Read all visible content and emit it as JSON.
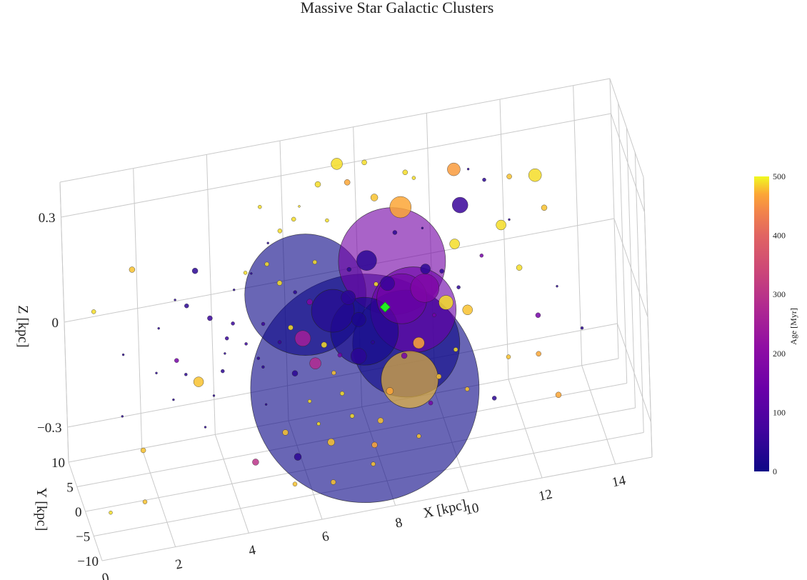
{
  "chart_data": {
    "type": "scatter3d",
    "title": "Massive Star Galactic Clusters",
    "xlabel": "X [kpc]",
    "ylabel": "Y [kpc]",
    "zlabel": "Z [kpc]",
    "xlim": [
      0,
      15
    ],
    "ylim": [
      -10,
      10
    ],
    "zlim": [
      -0.4,
      0.4
    ],
    "x_ticks": [
      "0",
      "2",
      "4",
      "6",
      "8",
      "10",
      "12",
      "14"
    ],
    "y_ticks": [
      "−10",
      "−5",
      "0",
      "5",
      "10"
    ],
    "z_ticks": [
      "−0.3",
      "0",
      "0.3"
    ],
    "grid": true,
    "colorbar": {
      "label": "Age [Myr]",
      "range": [
        0,
        500
      ],
      "ticks": [
        "0",
        "100",
        "200",
        "300",
        "400",
        "500"
      ],
      "colorscale": "plasma"
    },
    "marker": {
      "name": "Sun",
      "x": 8.3,
      "y": 0,
      "z": 0.02,
      "color": "#22ee22"
    },
    "points": [
      [
        7.6,
        -2.0,
        -0.17,
        320,
        0
      ],
      [
        6.2,
        1.2,
        0.08,
        170,
        0
      ],
      [
        8.6,
        1.8,
        0.12,
        150,
        160
      ],
      [
        8.8,
        -1.0,
        -0.08,
        150,
        0
      ],
      [
        9.0,
        -1.5,
        0.02,
        120,
        140
      ],
      [
        7.7,
        -0.5,
        -0.03,
        95,
        10
      ],
      [
        8.8,
        -2.6,
        -0.16,
        80,
        480
      ],
      [
        6.9,
        0.5,
        0.03,
        60,
        30
      ],
      [
        8.8,
        1.0,
        0.02,
        70,
        150
      ],
      [
        9.4,
        0.2,
        0.05,
        40,
        180
      ],
      [
        8.9,
        2.4,
        0.26,
        30,
        470
      ],
      [
        10.5,
        2.0,
        0.24,
        22,
        60
      ],
      [
        9.9,
        -1.3,
        0.02,
        20,
        490
      ],
      [
        7.6,
        0.6,
        -0.01,
        20,
        20
      ],
      [
        7.3,
        -0.2,
        0.07,
        20,
        40
      ],
      [
        7.9,
        1.5,
        0.14,
        28,
        40
      ],
      [
        8.4,
        0.4,
        0.08,
        20,
        60
      ],
      [
        6.0,
        -1.0,
        -0.01,
        22,
        250
      ],
      [
        6.3,
        -1.5,
        -0.08,
        16,
        280
      ],
      [
        7.5,
        -1.0,
        -0.09,
        22,
        40
      ],
      [
        9.1,
        -2.0,
        -0.07,
        16,
        470
      ],
      [
        10.5,
        -0.8,
        -0.02,
        14,
        480
      ],
      [
        11.6,
        2.1,
        0.16,
        14,
        490
      ],
      [
        10.4,
        3.0,
        0.33,
        18,
        460
      ],
      [
        10.3,
        1.5,
        0.14,
        14,
        490
      ],
      [
        12.6,
        3.0,
        0.27,
        18,
        490
      ],
      [
        9.5,
        1.8,
        0.08,
        14,
        40
      ],
      [
        7.2,
        2.2,
        0.42,
        16,
        490
      ],
      [
        8.2,
        2.5,
        0.3,
        10,
        480
      ],
      [
        8.3,
        -1.4,
        -0.2,
        10,
        470
      ],
      [
        6.6,
        -3.0,
        -0.29,
        10,
        480
      ],
      [
        8.0,
        -2.0,
        -0.27,
        8,
        480
      ],
      [
        7.8,
        -2.4,
        -0.33,
        8,
        470
      ],
      [
        5.7,
        -2.6,
        -0.32,
        10,
        40
      ],
      [
        5.4,
        -2.2,
        -0.25,
        8,
        480
      ],
      [
        5.8,
        0.0,
        -0.12,
        8,
        40
      ],
      [
        6.3,
        1.0,
        0.06,
        8,
        180
      ],
      [
        6.6,
        -0.3,
        -0.05,
        8,
        490
      ],
      [
        5.7,
        -0.5,
        0.02,
        7,
        490
      ],
      [
        5.5,
        1.0,
        0.13,
        7,
        490
      ],
      [
        6.7,
        3.0,
        0.36,
        8,
        490
      ],
      [
        7.5,
        3.0,
        0.35,
        8,
        470
      ],
      [
        8.0,
        3.5,
        0.39,
        7,
        490
      ],
      [
        9.1,
        3.5,
        0.34,
        7,
        490
      ],
      [
        11.9,
        3.0,
        0.28,
        7,
        480
      ],
      [
        12.8,
        2.5,
        0.18,
        8,
        480
      ],
      [
        12.0,
        0.7,
        0.05,
        8,
        490
      ],
      [
        12.4,
        -1.0,
        -0.07,
        7,
        160
      ],
      [
        12.3,
        -3.0,
        -0.15,
        7,
        470
      ],
      [
        12.7,
        -5.5,
        -0.24,
        8,
        470
      ],
      [
        11.0,
        -4.5,
        -0.23,
        6,
        40
      ],
      [
        10.3,
        -3.8,
        -0.2,
        6,
        480
      ],
      [
        9.3,
        -3.8,
        -0.22,
        6,
        160
      ],
      [
        8.9,
        -5.0,
        -0.29,
        6,
        480
      ],
      [
        7.6,
        -6.0,
        -0.33,
        6,
        480
      ],
      [
        6.5,
        -6.0,
        -0.36,
        7,
        480
      ],
      [
        5.5,
        -5.0,
        -0.36,
        6,
        480
      ],
      [
        3.2,
        0.5,
        -0.1,
        14,
        480
      ],
      [
        4.6,
        -1.4,
        -0.33,
        9,
        300
      ],
      [
        1.5,
        0.8,
        0.25,
        8,
        480
      ],
      [
        1.6,
        -0.5,
        -0.25,
        7,
        480
      ],
      [
        1.5,
        -3.0,
        -0.36,
        6,
        480
      ],
      [
        0.4,
        0.2,
        0.16,
        6,
        490
      ],
      [
        0.5,
        -4.5,
        -0.35,
        5,
        490
      ],
      [
        3.3,
        3.0,
        0.18,
        8,
        40
      ],
      [
        3.0,
        2.0,
        0.1,
        6,
        40
      ],
      [
        3.6,
        1.5,
        0.06,
        7,
        60
      ],
      [
        4.2,
        1.0,
        0.04,
        5,
        60
      ],
      [
        4.0,
        0.4,
        0.01,
        5,
        60
      ],
      [
        4.5,
        0.0,
        -0.01,
        4,
        60
      ],
      [
        5.0,
        0.5,
        0.03,
        5,
        60
      ],
      [
        5.4,
        -0.2,
        -0.02,
        5,
        60
      ],
      [
        4.8,
        -0.5,
        -0.05,
        4,
        40
      ],
      [
        2.6,
        0.0,
        -0.02,
        6,
        160
      ],
      [
        2.8,
        -1.0,
        -0.05,
        4,
        40
      ],
      [
        3.8,
        -1.0,
        -0.06,
        5,
        40
      ],
      [
        4.9,
        -1.0,
        -0.07,
        4,
        40
      ],
      [
        4.6,
        1.5,
        0.17,
        5,
        490
      ],
      [
        5.2,
        1.7,
        0.18,
        6,
        490
      ],
      [
        5.6,
        2.2,
        0.26,
        6,
        490
      ],
      [
        5.1,
        2.8,
        0.33,
        5,
        490
      ],
      [
        6.0,
        2.6,
        0.28,
        6,
        490
      ],
      [
        6.5,
        1.7,
        0.16,
        6,
        490
      ],
      [
        6.1,
        -1.8,
        -0.18,
        5,
        490
      ],
      [
        7.0,
        -1.5,
        -0.18,
        6,
        490
      ],
      [
        7.2,
        -2.8,
        -0.23,
        6,
        490
      ],
      [
        6.3,
        -2.4,
        -0.24,
        5,
        490
      ],
      [
        8.1,
        0.7,
        0.08,
        6,
        490
      ],
      [
        8.7,
        1.8,
        0.2,
        6,
        40
      ],
      [
        9.9,
        0.8,
        0.08,
        6,
        40
      ],
      [
        10.3,
        -0.2,
        0.04,
        5,
        40
      ],
      [
        11.0,
        1.0,
        0.1,
        5,
        160
      ],
      [
        9.6,
        -0.6,
        -0.02,
        5,
        160
      ],
      [
        10.1,
        -1.9,
        -0.11,
        6,
        490
      ],
      [
        11.5,
        -2.5,
        -0.15,
        6,
        480
      ],
      [
        13.5,
        -3.0,
        -0.1,
        4,
        40
      ],
      [
        11.2,
        2.6,
        0.29,
        5,
        40
      ],
      [
        9.3,
        2.8,
        0.33,
        5,
        490
      ],
      [
        7.4,
        1.1,
        0.13,
        6,
        40
      ],
      [
        6.9,
        2.5,
        0.26,
        5,
        490
      ],
      [
        7.9,
        -0.9,
        -0.06,
        5,
        40
      ],
      [
        7.0,
        -0.8,
        -0.08,
        6,
        160
      ],
      [
        6.8,
        -1.3,
        -0.12,
        6,
        480
      ],
      [
        8.7,
        -1.9,
        -0.1,
        8,
        160
      ],
      [
        9.6,
        -2.4,
        -0.17,
        7,
        480
      ],
      [
        5.9,
        0.7,
        0.1,
        5,
        40
      ],
      [
        2.2,
        1.4,
        0.06,
        3,
        40
      ],
      [
        1.2,
        1.0,
        0.01,
        3,
        40
      ],
      [
        2.0,
        -1.0,
        -0.03,
        3,
        40
      ],
      [
        2.4,
        -2.0,
        -0.1,
        3,
        40
      ],
      [
        3.5,
        -2.0,
        -0.11,
        3,
        40
      ],
      [
        3.9,
        -0.4,
        -0.02,
        3,
        40
      ],
      [
        4.3,
        2.0,
        0.12,
        3,
        40
      ],
      [
        4.8,
        2.5,
        0.15,
        3,
        40
      ],
      [
        5.3,
        3.0,
        0.22,
        3,
        40
      ],
      [
        6.2,
        3.5,
        0.3,
        3,
        490
      ],
      [
        4.9,
        -2.2,
        -0.16,
        3,
        40
      ],
      [
        3.2,
        -3.0,
        -0.18,
        3,
        40
      ],
      [
        1.0,
        -2.0,
        -0.12,
        3,
        40
      ],
      [
        2.7,
        2.2,
        0.12,
        3,
        40
      ],
      [
        10.8,
        3.2,
        0.32,
        3,
        40
      ],
      [
        11.8,
        1.5,
        0.18,
        3,
        40
      ],
      [
        9.5,
        3.0,
        0.18,
        3,
        40
      ],
      [
        13.0,
        0.5,
        -0.02,
        3,
        40
      ]
    ]
  }
}
